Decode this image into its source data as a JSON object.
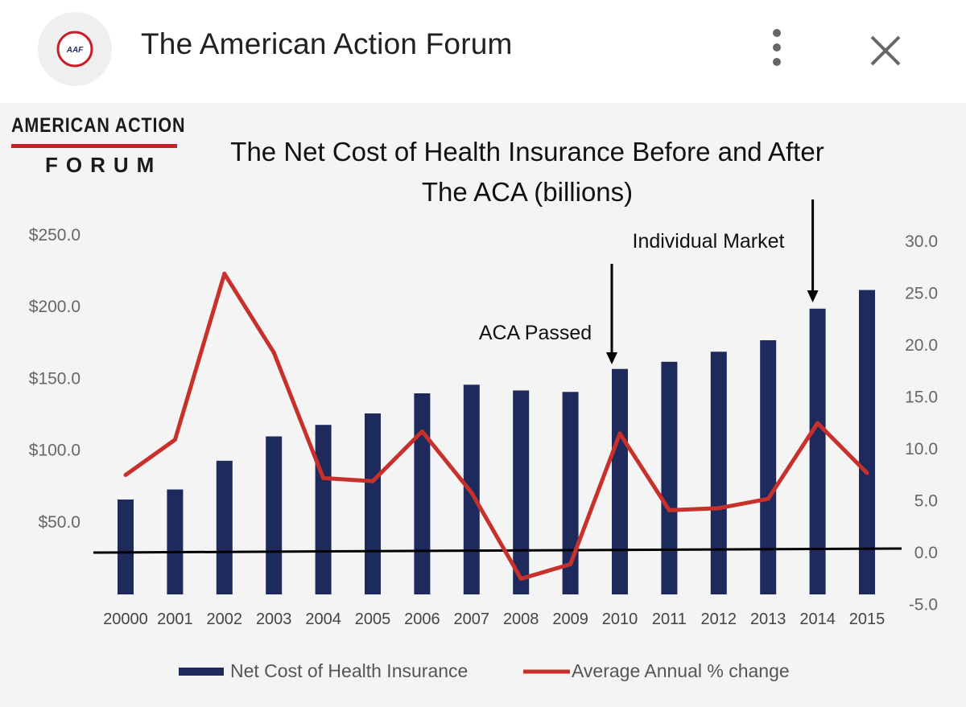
{
  "header": {
    "title": "The American Action Forum",
    "avatar_text": "AAF",
    "more_icon": "more-vert-icon",
    "close_icon": "close-icon"
  },
  "brand": {
    "line1": "AMERICAN ACTION",
    "line2": "FORUM",
    "rule_color": "#c8202a"
  },
  "chart_data": {
    "type": "bar",
    "title": "The Net Cost of Health Insurance Before and After The ACA  (billions)",
    "title_lines": [
      "The Net Cost of Health Insurance Before and After",
      "The ACA  (billions)"
    ],
    "categories": [
      "20000",
      "2001",
      "2002",
      "2003",
      "2004",
      "2005",
      "2006",
      "2007",
      "2008",
      "2009",
      "2010",
      "2011",
      "2012",
      "2013",
      "2014",
      "2015"
    ],
    "left_axis": {
      "ticks": [
        "$50.0",
        "$100.0",
        "$150.0",
        "$200.0",
        "$250.0"
      ],
      "tick_values": [
        50,
        100,
        150,
        200,
        250
      ],
      "ylim": [
        0,
        250
      ]
    },
    "right_axis": {
      "ticks": [
        "-5.0",
        "0.0",
        "5.0",
        "10.0",
        "15.0",
        "20.0",
        "25.0",
        "30.0"
      ],
      "tick_values": [
        -5,
        0,
        5,
        10,
        15,
        20,
        25,
        30
      ],
      "ylim": [
        -5,
        30
      ]
    },
    "series": [
      {
        "name": "Net Cost of Health Insurance",
        "type": "bar",
        "axis": "left",
        "color": "#1f2a5c",
        "values": [
          65,
          72,
          92,
          109,
          117,
          125,
          139,
          145,
          141,
          140,
          156,
          161,
          168,
          176,
          198,
          211
        ]
      },
      {
        "name": "Average Annual % change",
        "type": "line",
        "axis": "right",
        "color": "#c8302c",
        "values": [
          7.4,
          10.8,
          26.8,
          19.2,
          7.1,
          6.8,
          11.6,
          5.7,
          -2.6,
          -1.2,
          11.4,
          4.0,
          4.2,
          5.1,
          12.4,
          7.6
        ]
      }
    ],
    "annotations": [
      {
        "text": "ACA Passed",
        "category": "2010"
      },
      {
        "text": "Individual Market",
        "category": "2014"
      }
    ],
    "legend": {
      "placement": "bottom"
    },
    "grid": false
  }
}
